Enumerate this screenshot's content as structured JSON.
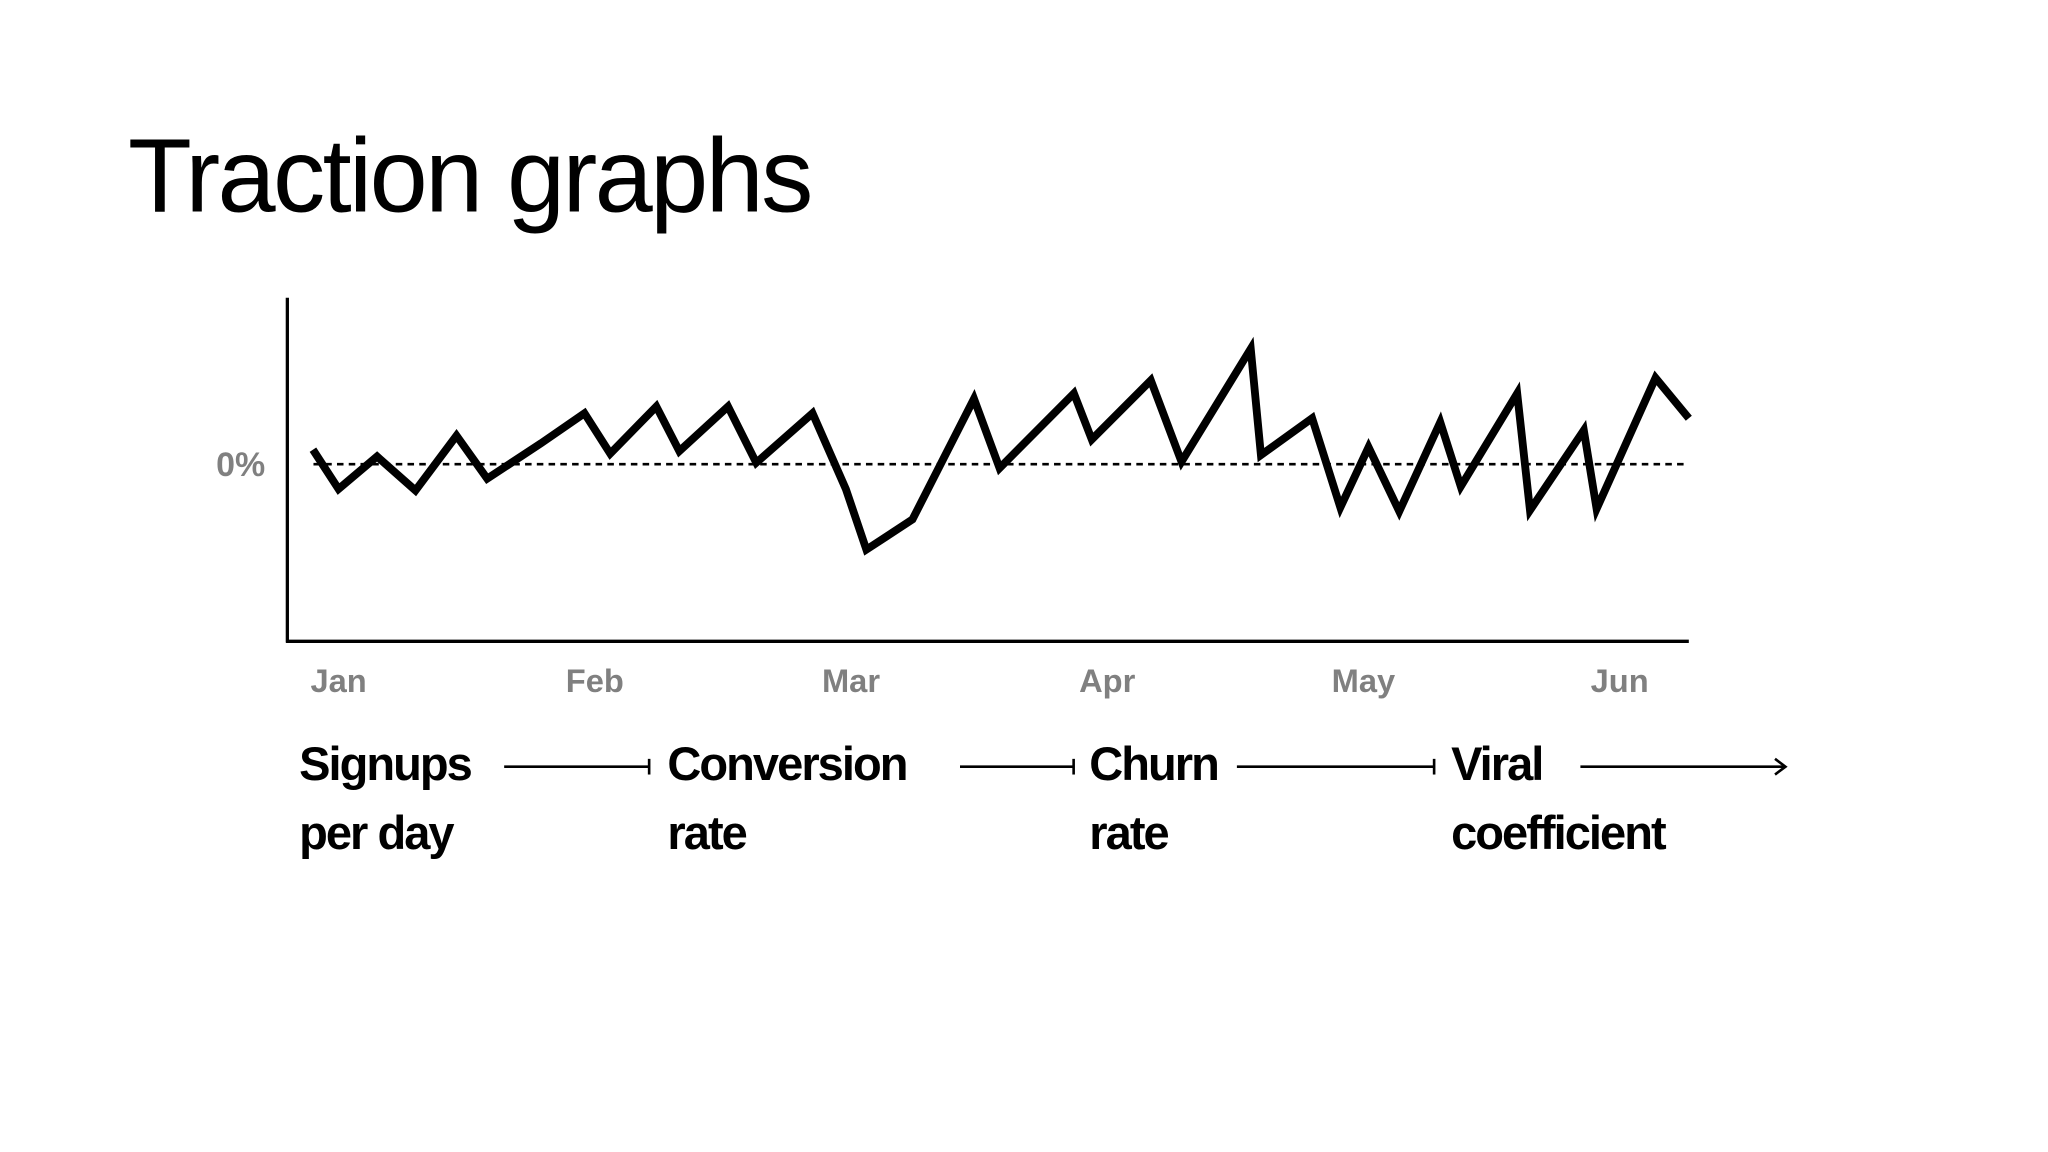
{
  "title": "Traction graphs",
  "chart_data": {
    "type": "line",
    "x": [
      -0.1,
      0,
      0.15,
      0.3,
      0.46,
      0.58,
      0.79,
      0.96,
      1.06,
      1.24,
      1.33,
      1.52,
      1.63,
      1.85,
      1.98,
      2.06,
      2.24,
      2.48,
      2.58,
      2.87,
      2.94,
      3.17,
      3.29,
      3.56,
      3.6,
      3.8,
      3.91,
      4.02,
      4.14,
      4.3,
      4.38,
      4.6,
      4.65,
      4.86,
      4.91,
      5.14,
      5.27
    ],
    "values": [
      0.41,
      -0.7,
      0.22,
      -0.74,
      0.81,
      -0.41,
      0.59,
      1.44,
      0.3,
      1.63,
      0.37,
      1.63,
      0.04,
      1.44,
      -0.7,
      -2.41,
      -1.56,
      1.85,
      -0.11,
      2.0,
      0.7,
      2.37,
      0.07,
      3.26,
      0.26,
      1.3,
      -1.22,
      0.48,
      -1.33,
      1.19,
      -0.63,
      2.0,
      -1.3,
      0.96,
      -1.26,
      2.44,
      1.3
    ],
    "color": "#000000",
    "xlim": [
      -0.2,
      5.27
    ],
    "xticks": [
      {
        "value": 0,
        "label": "Jan"
      },
      {
        "value": 1,
        "label": "Feb"
      },
      {
        "value": 2,
        "label": "Mar"
      },
      {
        "value": 3,
        "label": "Apr"
      },
      {
        "value": 4,
        "label": "May"
      },
      {
        "value": 5,
        "label": "Jun"
      }
    ],
    "ylim": [
      -5,
      4.7
    ],
    "yticks": [
      {
        "value": 0,
        "label": "0%"
      }
    ]
  },
  "flow": [
    {
      "lines": [
        "Signups",
        "per day"
      ]
    },
    {
      "lines": [
        "Conversion",
        "rate"
      ]
    },
    {
      "lines": [
        "Churn",
        "rate"
      ]
    },
    {
      "lines": [
        "Viral",
        "coefficient"
      ]
    }
  ]
}
